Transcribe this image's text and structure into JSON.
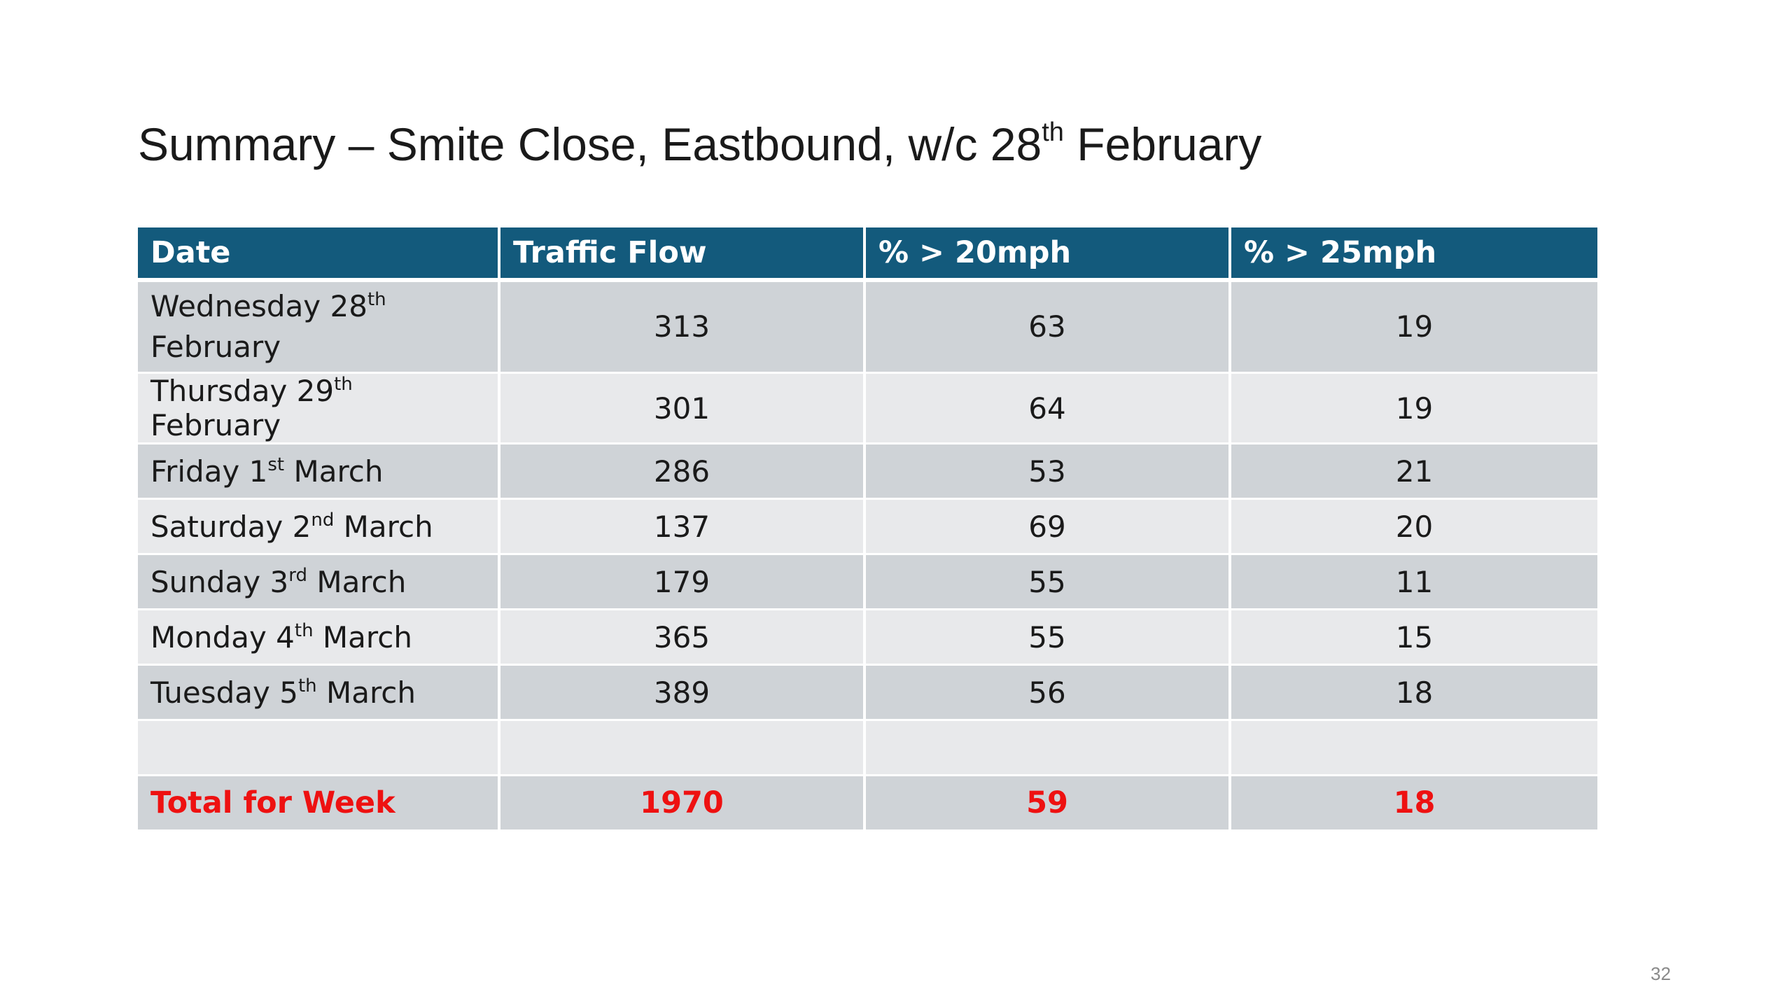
{
  "slide": {
    "title": {
      "prefix": "Summary –  Smite Close, Eastbound, w/c 28",
      "sup": "th",
      "suffix": " February"
    },
    "page_number": "32"
  },
  "table": {
    "headers": [
      "Date",
      "Traffic Flow",
      "% > 20mph",
      "% > 25mph"
    ],
    "rows": [
      {
        "date_pre": "Wednesday 28",
        "date_sup": "th",
        "date_post": "February",
        "flow": "313",
        "pct20": "63",
        "pct25": "19"
      },
      {
        "date_pre": "Thursday 29",
        "date_sup": "th",
        "date_post": " February",
        "flow": "301",
        "pct20": "64",
        "pct25": "19"
      },
      {
        "date_pre": "Friday 1",
        "date_sup": "st",
        "date_post": " March",
        "flow": "286",
        "pct20": "53",
        "pct25": "21"
      },
      {
        "date_pre": "Saturday 2",
        "date_sup": "nd",
        "date_post": " March",
        "flow": "137",
        "pct20": "69",
        "pct25": "20"
      },
      {
        "date_pre": "Sunday 3",
        "date_sup": "rd",
        "date_post": " March",
        "flow": "179",
        "pct20": "55",
        "pct25": "11"
      },
      {
        "date_pre": "Monday 4",
        "date_sup": "th",
        "date_post": " March",
        "flow": "365",
        "pct20": "55",
        "pct25": "15"
      },
      {
        "date_pre": "Tuesday 5",
        "date_sup": "th",
        "date_post": " March",
        "flow": "389",
        "pct20": "56",
        "pct25": "18"
      }
    ],
    "total": {
      "label": "Total for Week",
      "flow": "1970",
      "pct20": "59",
      "pct25": "18"
    },
    "colors": {
      "header_bg": "#135a7c",
      "header_text": "#ffffff",
      "row_dark": "#cfd3d7",
      "row_light": "#e8e9eb",
      "total_text": "#ee1111"
    }
  }
}
